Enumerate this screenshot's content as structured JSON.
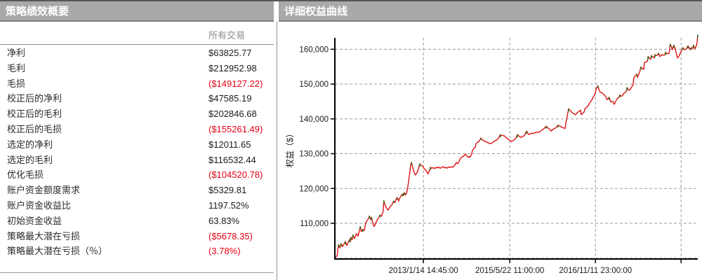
{
  "summary": {
    "title": "策略绩效概要",
    "column_header": "所有交易",
    "rows": [
      {
        "label": "净利",
        "value": "$63825.77",
        "negative": false
      },
      {
        "label": "毛利",
        "value": "$212952.98",
        "negative": false
      },
      {
        "label": "毛损",
        "value": "($149127.22)",
        "negative": true
      },
      {
        "label": "校正后的净利",
        "value": "$47585.19",
        "negative": false
      },
      {
        "label": "校正后的毛利",
        "value": "$202846.68",
        "negative": false
      },
      {
        "label": "校正后的毛损",
        "value": "($155261.49)",
        "negative": true
      },
      {
        "label": "选定的净利",
        "value": "$12011.65",
        "negative": false
      },
      {
        "label": "选定的毛利",
        "value": "$116532.44",
        "negative": false
      },
      {
        "label": "优化毛损",
        "value": "($104520.78)",
        "negative": true
      },
      {
        "label": "账户资金额度需求",
        "value": "$5329.81",
        "negative": false
      },
      {
        "label": "账户资金收益比",
        "value": "1197.52%",
        "negative": false
      },
      {
        "label": "初始资金收益",
        "value": "63.83%",
        "negative": false
      },
      {
        "label": "策略最大潜在亏损",
        "value": "($5678.35)",
        "negative": true
      },
      {
        "label": "策略最大潜在亏损（％）",
        "value": "(3.78%)",
        "negative": true
      }
    ]
  },
  "colors": {
    "negative_red": "#e60013",
    "header_bg": "#a9a9a9",
    "header_text": "#ffffff",
    "grid_gray": "#9a9a9a",
    "axis_black": "#000000"
  },
  "chart_data": {
    "type": "line",
    "title": "详细权益曲线",
    "ylabel": "权益（$）",
    "ylim": [
      99800,
      164800
    ],
    "grid": "dashed",
    "y_ticks": [
      110000,
      120000,
      130000,
      140000,
      150000,
      160000
    ],
    "y_tick_labels": [
      "110,000",
      "120,000",
      "130,000",
      "140,000",
      "150,000",
      "160,000"
    ],
    "y_baseline_gridline": 100000,
    "x_ticks": [
      0.244,
      0.482,
      0.718,
      0.954
    ],
    "x_tick_labels": [
      "2013/1/14 14:45:00",
      "2015/5/22 11:00:00",
      "2016/11/11 23:00:00",
      ""
    ],
    "legend": "none",
    "series": [
      {
        "name": "equity",
        "color": "#dc1414",
        "up_tick_color": "#1e7d1e",
        "points": [
          [
            0.002,
            100300
          ],
          [
            0.006,
            100600
          ],
          [
            0.008,
            102200
          ],
          [
            0.01,
            103900
          ],
          [
            0.014,
            102900
          ],
          [
            0.017,
            104200
          ],
          [
            0.021,
            103300
          ],
          [
            0.025,
            104000
          ],
          [
            0.029,
            104800
          ],
          [
            0.033,
            103600
          ],
          [
            0.037,
            104600
          ],
          [
            0.041,
            105400
          ],
          [
            0.043,
            104700
          ],
          [
            0.044,
            106000
          ],
          [
            0.048,
            105300
          ],
          [
            0.05,
            106700
          ],
          [
            0.054,
            105600
          ],
          [
            0.058,
            106600
          ],
          [
            0.06,
            107000
          ],
          [
            0.064,
            106300
          ],
          [
            0.068,
            108100
          ],
          [
            0.07,
            109100
          ],
          [
            0.073,
            107600
          ],
          [
            0.077,
            108300
          ],
          [
            0.081,
            107900
          ],
          [
            0.085,
            110100
          ],
          [
            0.089,
            110800
          ],
          [
            0.093,
            111400
          ],
          [
            0.095,
            112100
          ],
          [
            0.099,
            111000
          ],
          [
            0.101,
            111800
          ],
          [
            0.104,
            110300
          ],
          [
            0.108,
            109100
          ],
          [
            0.112,
            109800
          ],
          [
            0.114,
            110400
          ],
          [
            0.118,
            111200
          ],
          [
            0.122,
            111800
          ],
          [
            0.124,
            112400
          ],
          [
            0.128,
            112000
          ],
          [
            0.132,
            113000
          ],
          [
            0.133,
            113500
          ],
          [
            0.135,
            116500
          ],
          [
            0.137,
            115800
          ],
          [
            0.141,
            114600
          ],
          [
            0.145,
            114000
          ],
          [
            0.147,
            113800
          ],
          [
            0.151,
            114600
          ],
          [
            0.153,
            114900
          ],
          [
            0.157,
            115200
          ],
          [
            0.159,
            115800
          ],
          [
            0.162,
            116400
          ],
          [
            0.166,
            116000
          ],
          [
            0.168,
            116800
          ],
          [
            0.172,
            117400
          ],
          [
            0.176,
            116400
          ],
          [
            0.178,
            117100
          ],
          [
            0.182,
            117800
          ],
          [
            0.186,
            118400
          ],
          [
            0.188,
            118000
          ],
          [
            0.191,
            118800
          ],
          [
            0.195,
            118200
          ],
          [
            0.199,
            119200
          ],
          [
            0.201,
            120400
          ],
          [
            0.205,
            123500
          ],
          [
            0.209,
            126800
          ],
          [
            0.211,
            127500
          ],
          [
            0.215,
            125800
          ],
          [
            0.219,
            124500
          ],
          [
            0.222,
            123900
          ],
          [
            0.226,
            124500
          ],
          [
            0.228,
            124900
          ],
          [
            0.232,
            126300
          ],
          [
            0.234,
            127100
          ],
          [
            0.238,
            126600
          ],
          [
            0.242,
            126500
          ],
          [
            0.246,
            125700
          ],
          [
            0.25,
            125300
          ],
          [
            0.253,
            124800
          ],
          [
            0.257,
            124200
          ],
          [
            0.261,
            125300
          ],
          [
            0.263,
            126100
          ],
          [
            0.267,
            125800
          ],
          [
            0.271,
            126000
          ],
          [
            0.275,
            125700
          ],
          [
            0.279,
            126100
          ],
          [
            0.282,
            125900
          ],
          [
            0.286,
            126200
          ],
          [
            0.29,
            125800
          ],
          [
            0.294,
            126000
          ],
          [
            0.298,
            126300
          ],
          [
            0.302,
            125900
          ],
          [
            0.306,
            126100
          ],
          [
            0.309,
            125800
          ],
          [
            0.313,
            126200
          ],
          [
            0.317,
            126000
          ],
          [
            0.321,
            126300
          ],
          [
            0.325,
            126100
          ],
          [
            0.329,
            126500
          ],
          [
            0.333,
            127200
          ],
          [
            0.335,
            127500
          ],
          [
            0.338,
            127100
          ],
          [
            0.34,
            127300
          ],
          [
            0.344,
            128200
          ],
          [
            0.348,
            128900
          ],
          [
            0.352,
            129100
          ],
          [
            0.354,
            129300
          ],
          [
            0.358,
            129600
          ],
          [
            0.36,
            129900
          ],
          [
            0.364,
            129300
          ],
          [
            0.368,
            128900
          ],
          [
            0.371,
            129200
          ],
          [
            0.373,
            129000
          ],
          [
            0.377,
            130000
          ],
          [
            0.379,
            130900
          ],
          [
            0.383,
            131500
          ],
          [
            0.387,
            131900
          ],
          [
            0.389,
            132900
          ],
          [
            0.393,
            133200
          ],
          [
            0.397,
            133500
          ],
          [
            0.4,
            134000
          ],
          [
            0.402,
            134500
          ],
          [
            0.406,
            134100
          ],
          [
            0.408,
            133900
          ],
          [
            0.412,
            133600
          ],
          [
            0.416,
            133500
          ],
          [
            0.42,
            133300
          ],
          [
            0.422,
            133100
          ],
          [
            0.426,
            133000
          ],
          [
            0.427,
            132900
          ],
          [
            0.431,
            132900
          ],
          [
            0.435,
            133200
          ],
          [
            0.439,
            133600
          ],
          [
            0.445,
            133900
          ],
          [
            0.451,
            134500
          ],
          [
            0.456,
            135500
          ],
          [
            0.46,
            135200
          ],
          [
            0.466,
            135200
          ],
          [
            0.47,
            134800
          ],
          [
            0.474,
            134500
          ],
          [
            0.478,
            134100
          ],
          [
            0.482,
            133800
          ],
          [
            0.486,
            133500
          ],
          [
            0.489,
            133700
          ],
          [
            0.493,
            133900
          ],
          [
            0.499,
            134500
          ],
          [
            0.503,
            135500
          ],
          [
            0.509,
            134900
          ],
          [
            0.513,
            134700
          ],
          [
            0.518,
            134900
          ],
          [
            0.524,
            135500
          ],
          [
            0.528,
            136500
          ],
          [
            0.534,
            135500
          ],
          [
            0.538,
            135700
          ],
          [
            0.543,
            135900
          ],
          [
            0.547,
            135800
          ],
          [
            0.551,
            136000
          ],
          [
            0.557,
            136200
          ],
          [
            0.561,
            136100
          ],
          [
            0.567,
            136500
          ],
          [
            0.571,
            136800
          ],
          [
            0.576,
            137200
          ],
          [
            0.582,
            137900
          ],
          [
            0.586,
            137500
          ],
          [
            0.59,
            137200
          ],
          [
            0.596,
            136500
          ],
          [
            0.601,
            137000
          ],
          [
            0.605,
            137200
          ],
          [
            0.609,
            137500
          ],
          [
            0.615,
            138200
          ],
          [
            0.621,
            137900
          ],
          [
            0.625,
            137600
          ],
          [
            0.629,
            137500
          ],
          [
            0.634,
            137200
          ],
          [
            0.638,
            139500
          ],
          [
            0.644,
            142900
          ],
          [
            0.648,
            142500
          ],
          [
            0.65,
            142200
          ],
          [
            0.654,
            141800
          ],
          [
            0.658,
            141500
          ],
          [
            0.663,
            141200
          ],
          [
            0.669,
            141900
          ],
          [
            0.673,
            142200
          ],
          [
            0.677,
            142500
          ],
          [
            0.679,
            141200
          ],
          [
            0.683,
            141600
          ],
          [
            0.687,
            142000
          ],
          [
            0.689,
            142900
          ],
          [
            0.692,
            143200
          ],
          [
            0.696,
            143500
          ],
          [
            0.702,
            144500
          ],
          [
            0.708,
            145500
          ],
          [
            0.712,
            146300
          ],
          [
            0.716,
            146900
          ],
          [
            0.721,
            148900
          ],
          [
            0.725,
            149500
          ],
          [
            0.727,
            148600
          ],
          [
            0.731,
            147700
          ],
          [
            0.735,
            147600
          ],
          [
            0.741,
            147000
          ],
          [
            0.745,
            146600
          ],
          [
            0.75,
            145500
          ],
          [
            0.756,
            146200
          ],
          [
            0.76,
            144900
          ],
          [
            0.766,
            145000
          ],
          [
            0.77,
            144200
          ],
          [
            0.776,
            145500
          ],
          [
            0.779,
            145900
          ],
          [
            0.783,
            146200
          ],
          [
            0.785,
            146900
          ],
          [
            0.789,
            146500
          ],
          [
            0.793,
            146700
          ],
          [
            0.795,
            147200
          ],
          [
            0.799,
            147500
          ],
          [
            0.803,
            147900
          ],
          [
            0.805,
            149000
          ],
          [
            0.808,
            148500
          ],
          [
            0.812,
            148200
          ],
          [
            0.818,
            149200
          ],
          [
            0.822,
            149900
          ],
          [
            0.824,
            151900
          ],
          [
            0.828,
            152400
          ],
          [
            0.832,
            152900
          ],
          [
            0.834,
            151900
          ],
          [
            0.838,
            153000
          ],
          [
            0.841,
            153900
          ],
          [
            0.843,
            154900
          ],
          [
            0.847,
            154500
          ],
          [
            0.851,
            154200
          ],
          [
            0.853,
            156200
          ],
          [
            0.857,
            156300
          ],
          [
            0.861,
            156500
          ],
          [
            0.863,
            157900
          ],
          [
            0.867,
            157400
          ],
          [
            0.87,
            157100
          ],
          [
            0.872,
            158200
          ],
          [
            0.876,
            157800
          ],
          [
            0.88,
            157500
          ],
          [
            0.882,
            158500
          ],
          [
            0.886,
            158200
          ],
          [
            0.89,
            158400
          ],
          [
            0.892,
            158900
          ],
          [
            0.896,
            157900
          ],
          [
            0.899,
            158200
          ],
          [
            0.901,
            158500
          ],
          [
            0.905,
            158300
          ],
          [
            0.909,
            158400
          ],
          [
            0.911,
            159200
          ],
          [
            0.915,
            158700
          ],
          [
            0.921,
            158900
          ],
          [
            0.924,
            161500
          ],
          [
            0.928,
            160500
          ],
          [
            0.93,
            159900
          ],
          [
            0.934,
            161200
          ],
          [
            0.938,
            160000
          ],
          [
            0.94,
            159200
          ],
          [
            0.944,
            157500
          ],
          [
            0.948,
            158000
          ],
          [
            0.95,
            158500
          ],
          [
            0.953,
            159200
          ],
          [
            0.957,
            159900
          ],
          [
            0.959,
            160500
          ],
          [
            0.963,
            159900
          ],
          [
            0.967,
            160000
          ],
          [
            0.969,
            160200
          ],
          [
            0.973,
            161000
          ],
          [
            0.977,
            160300
          ],
          [
            0.979,
            159900
          ],
          [
            0.982,
            160500
          ],
          [
            0.986,
            160200
          ],
          [
            0.988,
            161200
          ],
          [
            0.992,
            160200
          ],
          [
            0.996,
            161000
          ],
          [
            0.998,
            162000
          ],
          [
            1.0,
            164200
          ]
        ]
      }
    ]
  }
}
